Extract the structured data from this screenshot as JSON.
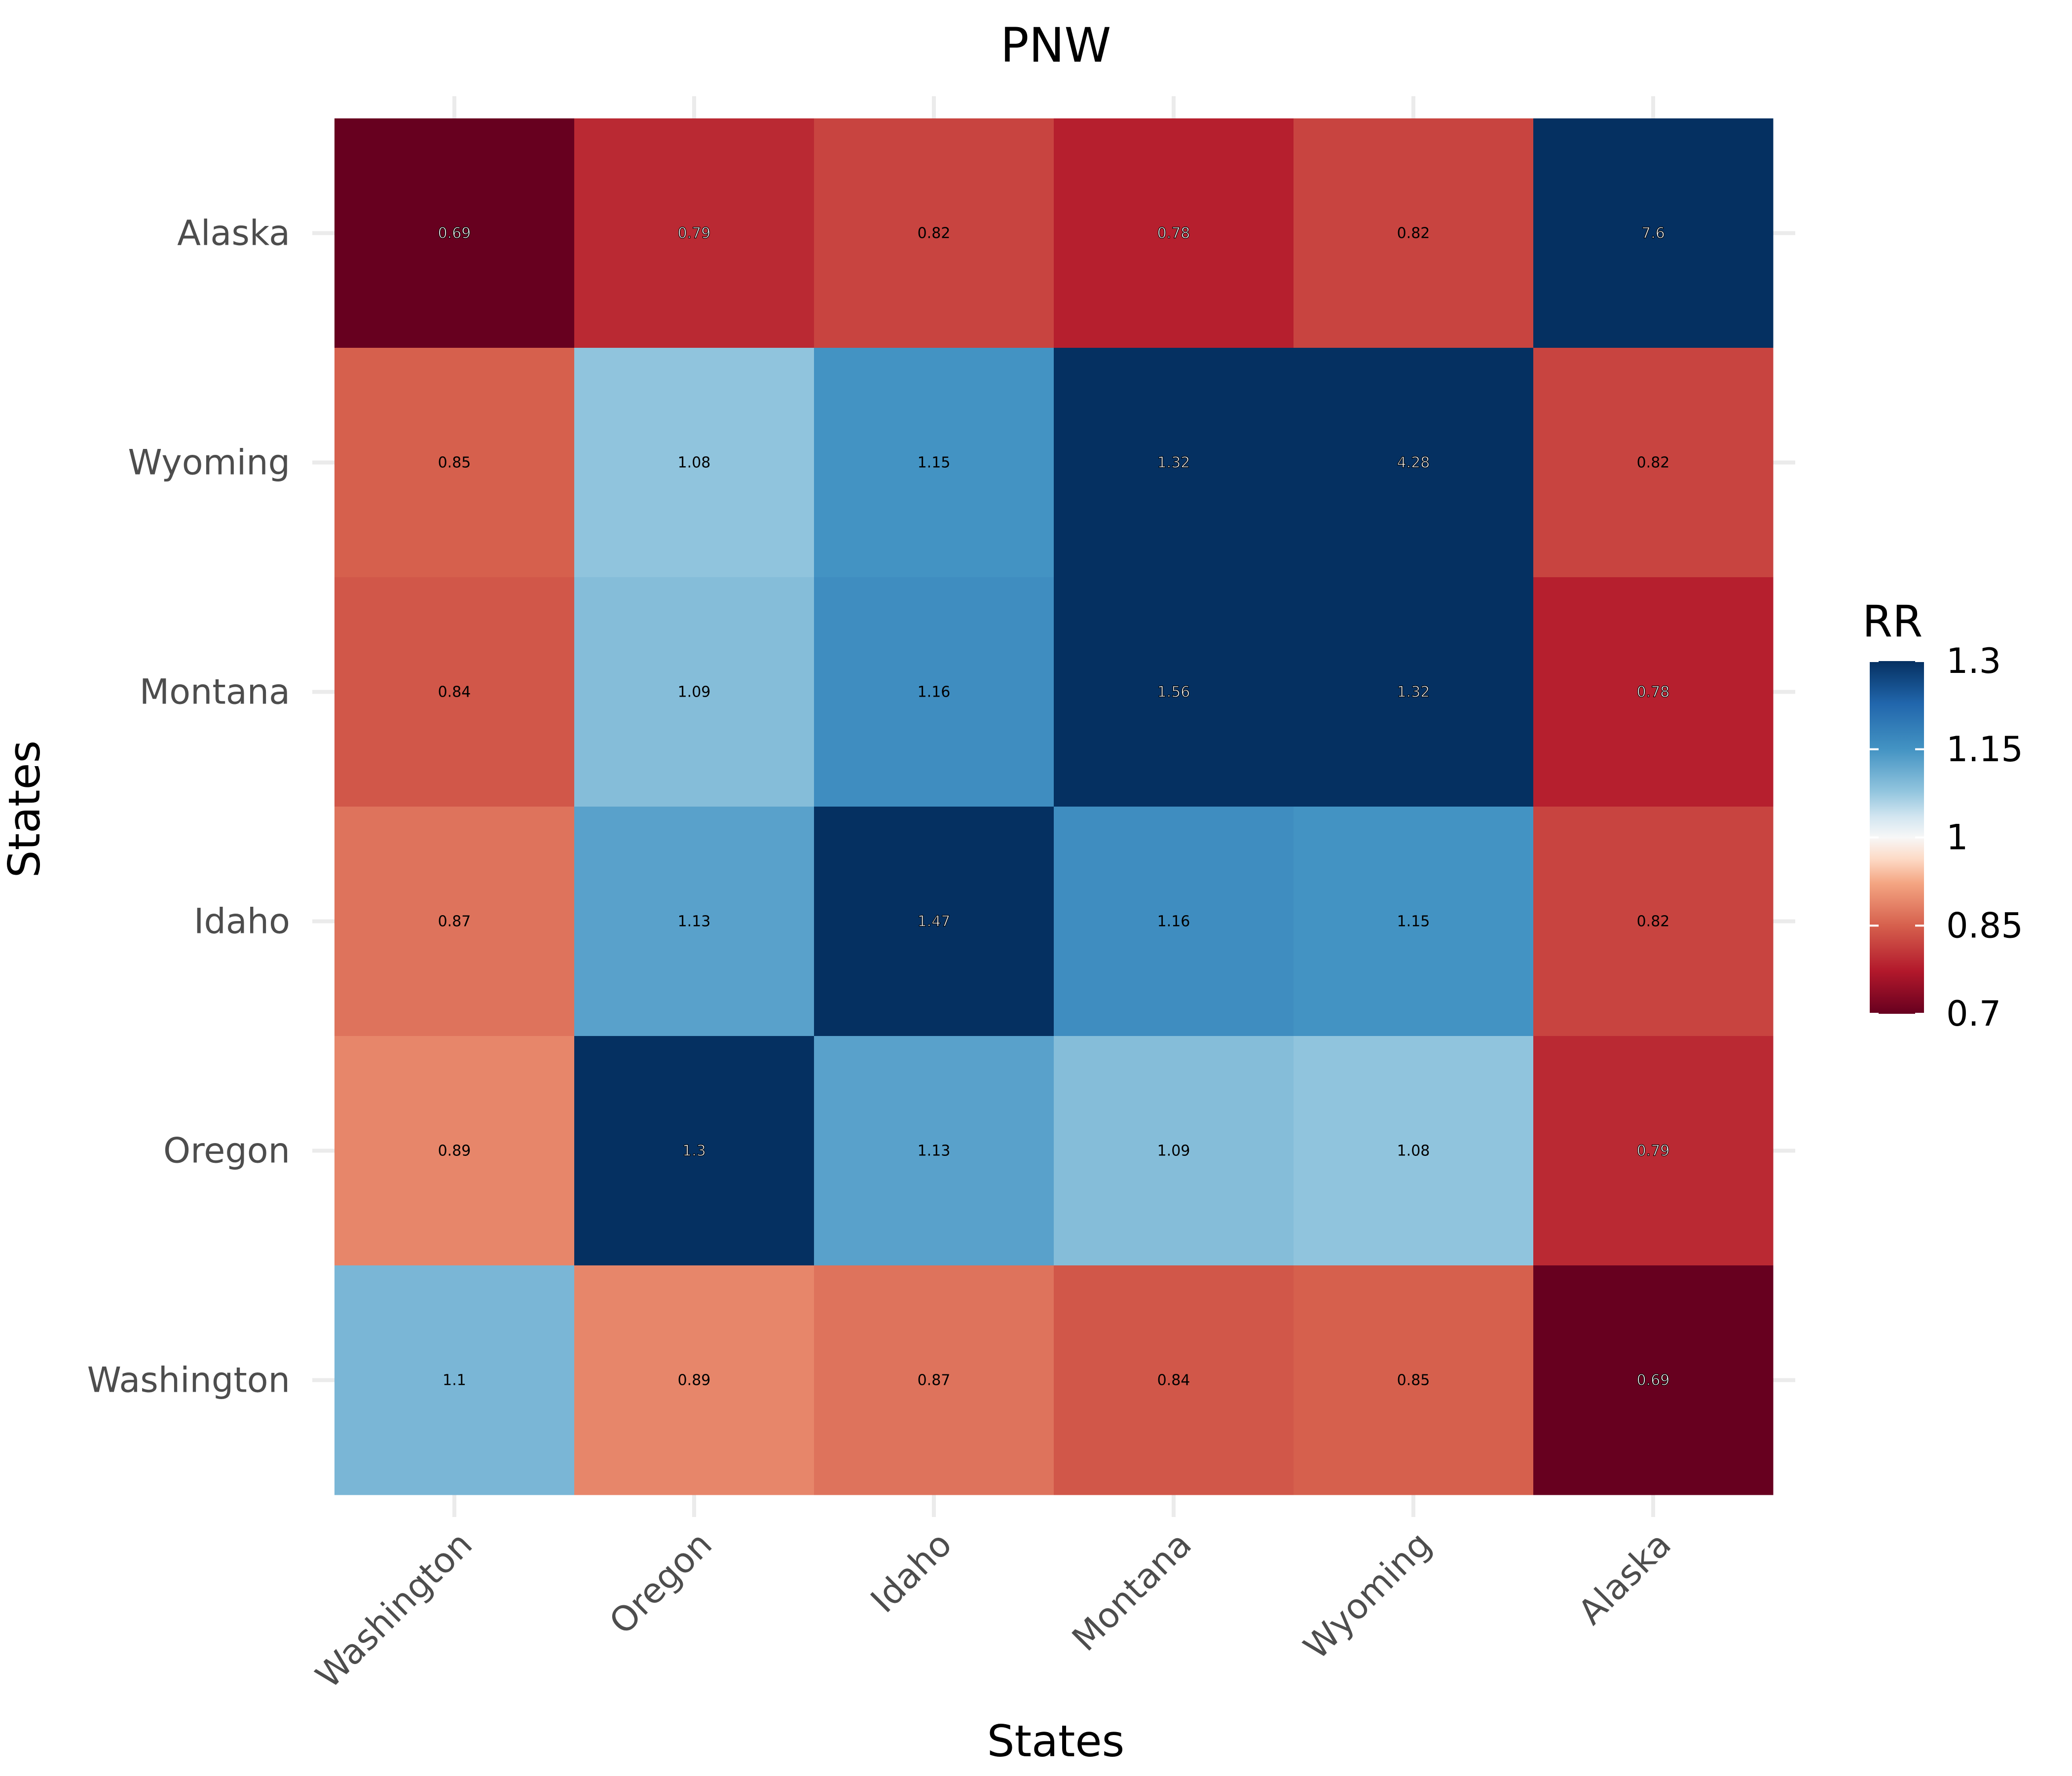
{
  "chart_data": {
    "type": "heatmap",
    "title": "PNW",
    "xlabel": "States",
    "ylabel": "States",
    "x_categories": [
      "Washington",
      "Oregon",
      "Idaho",
      "Montana",
      "Wyoming",
      "Alaska"
    ],
    "y_categories": [
      "Washington",
      "Oregon",
      "Idaho",
      "Montana",
      "Wyoming",
      "Alaska"
    ],
    "values": [
      {
        "x": "Washington",
        "y": "Alaska",
        "value": 0.69,
        "label": "0.69"
      },
      {
        "x": "Oregon",
        "y": "Alaska",
        "value": 0.79,
        "label": "0.79"
      },
      {
        "x": "Idaho",
        "y": "Alaska",
        "value": 0.82,
        "label": "0.82"
      },
      {
        "x": "Montana",
        "y": "Alaska",
        "value": 0.78,
        "label": "0.78"
      },
      {
        "x": "Wyoming",
        "y": "Alaska",
        "value": 0.82,
        "label": "0.82"
      },
      {
        "x": "Alaska",
        "y": "Alaska",
        "value": 7.6,
        "label": "7.6"
      },
      {
        "x": "Washington",
        "y": "Wyoming",
        "value": 0.85,
        "label": "0.85"
      },
      {
        "x": "Oregon",
        "y": "Wyoming",
        "value": 1.08,
        "label": "1.08"
      },
      {
        "x": "Idaho",
        "y": "Wyoming",
        "value": 1.15,
        "label": "1.15"
      },
      {
        "x": "Montana",
        "y": "Wyoming",
        "value": 1.32,
        "label": "1.32"
      },
      {
        "x": "Wyoming",
        "y": "Wyoming",
        "value": 4.28,
        "label": "4.28"
      },
      {
        "x": "Alaska",
        "y": "Wyoming",
        "value": 0.82,
        "label": "0.82"
      },
      {
        "x": "Washington",
        "y": "Montana",
        "value": 0.84,
        "label": "0.84"
      },
      {
        "x": "Oregon",
        "y": "Montana",
        "value": 1.09,
        "label": "1.09"
      },
      {
        "x": "Idaho",
        "y": "Montana",
        "value": 1.16,
        "label": "1.16"
      },
      {
        "x": "Montana",
        "y": "Montana",
        "value": 1.56,
        "label": "1.56"
      },
      {
        "x": "Wyoming",
        "y": "Montana",
        "value": 1.32,
        "label": "1.32"
      },
      {
        "x": "Alaska",
        "y": "Montana",
        "value": 0.78,
        "label": "0.78"
      },
      {
        "x": "Washington",
        "y": "Idaho",
        "value": 0.87,
        "label": "0.87"
      },
      {
        "x": "Oregon",
        "y": "Idaho",
        "value": 1.13,
        "label": "1.13"
      },
      {
        "x": "Idaho",
        "y": "Idaho",
        "value": 1.47,
        "label": "1.47"
      },
      {
        "x": "Montana",
        "y": "Idaho",
        "value": 1.16,
        "label": "1.16"
      },
      {
        "x": "Wyoming",
        "y": "Idaho",
        "value": 1.15,
        "label": "1.15"
      },
      {
        "x": "Alaska",
        "y": "Idaho",
        "value": 0.82,
        "label": "0.82"
      },
      {
        "x": "Washington",
        "y": "Oregon",
        "value": 0.89,
        "label": "0.89"
      },
      {
        "x": "Oregon",
        "y": "Oregon",
        "value": 1.3,
        "label": "1.3"
      },
      {
        "x": "Idaho",
        "y": "Oregon",
        "value": 1.13,
        "label": "1.13"
      },
      {
        "x": "Montana",
        "y": "Oregon",
        "value": 1.09,
        "label": "1.09"
      },
      {
        "x": "Wyoming",
        "y": "Oregon",
        "value": 1.08,
        "label": "1.08"
      },
      {
        "x": "Alaska",
        "y": "Oregon",
        "value": 0.79,
        "label": "0.79"
      },
      {
        "x": "Washington",
        "y": "Washington",
        "value": 1.1,
        "label": "1.1"
      },
      {
        "x": "Oregon",
        "y": "Washington",
        "value": 0.89,
        "label": "0.89"
      },
      {
        "x": "Idaho",
        "y": "Washington",
        "value": 0.87,
        "label": "0.87"
      },
      {
        "x": "Montana",
        "y": "Washington",
        "value": 0.84,
        "label": "0.84"
      },
      {
        "x": "Wyoming",
        "y": "Washington",
        "value": 0.85,
        "label": "0.85"
      },
      {
        "x": "Alaska",
        "y": "Washington",
        "value": 0.69,
        "label": "0.69"
      }
    ],
    "legend": {
      "title": "RR",
      "placement": "right",
      "ticks": [
        {
          "value": 1.3,
          "label": "1.3"
        },
        {
          "value": 1.15,
          "label": "1.15"
        },
        {
          "value": 1.0,
          "label": "1"
        },
        {
          "value": 0.85,
          "label": "0.85"
        },
        {
          "value": 0.7,
          "label": "0.7"
        }
      ],
      "limits": [
        0.7,
        1.3
      ]
    },
    "color_scale": {
      "name": "diverging red-white-blue",
      "low": "#67001f",
      "mid": "#f7f7f7",
      "high": "#053061",
      "midpoint": 1.0
    },
    "grid": true
  }
}
